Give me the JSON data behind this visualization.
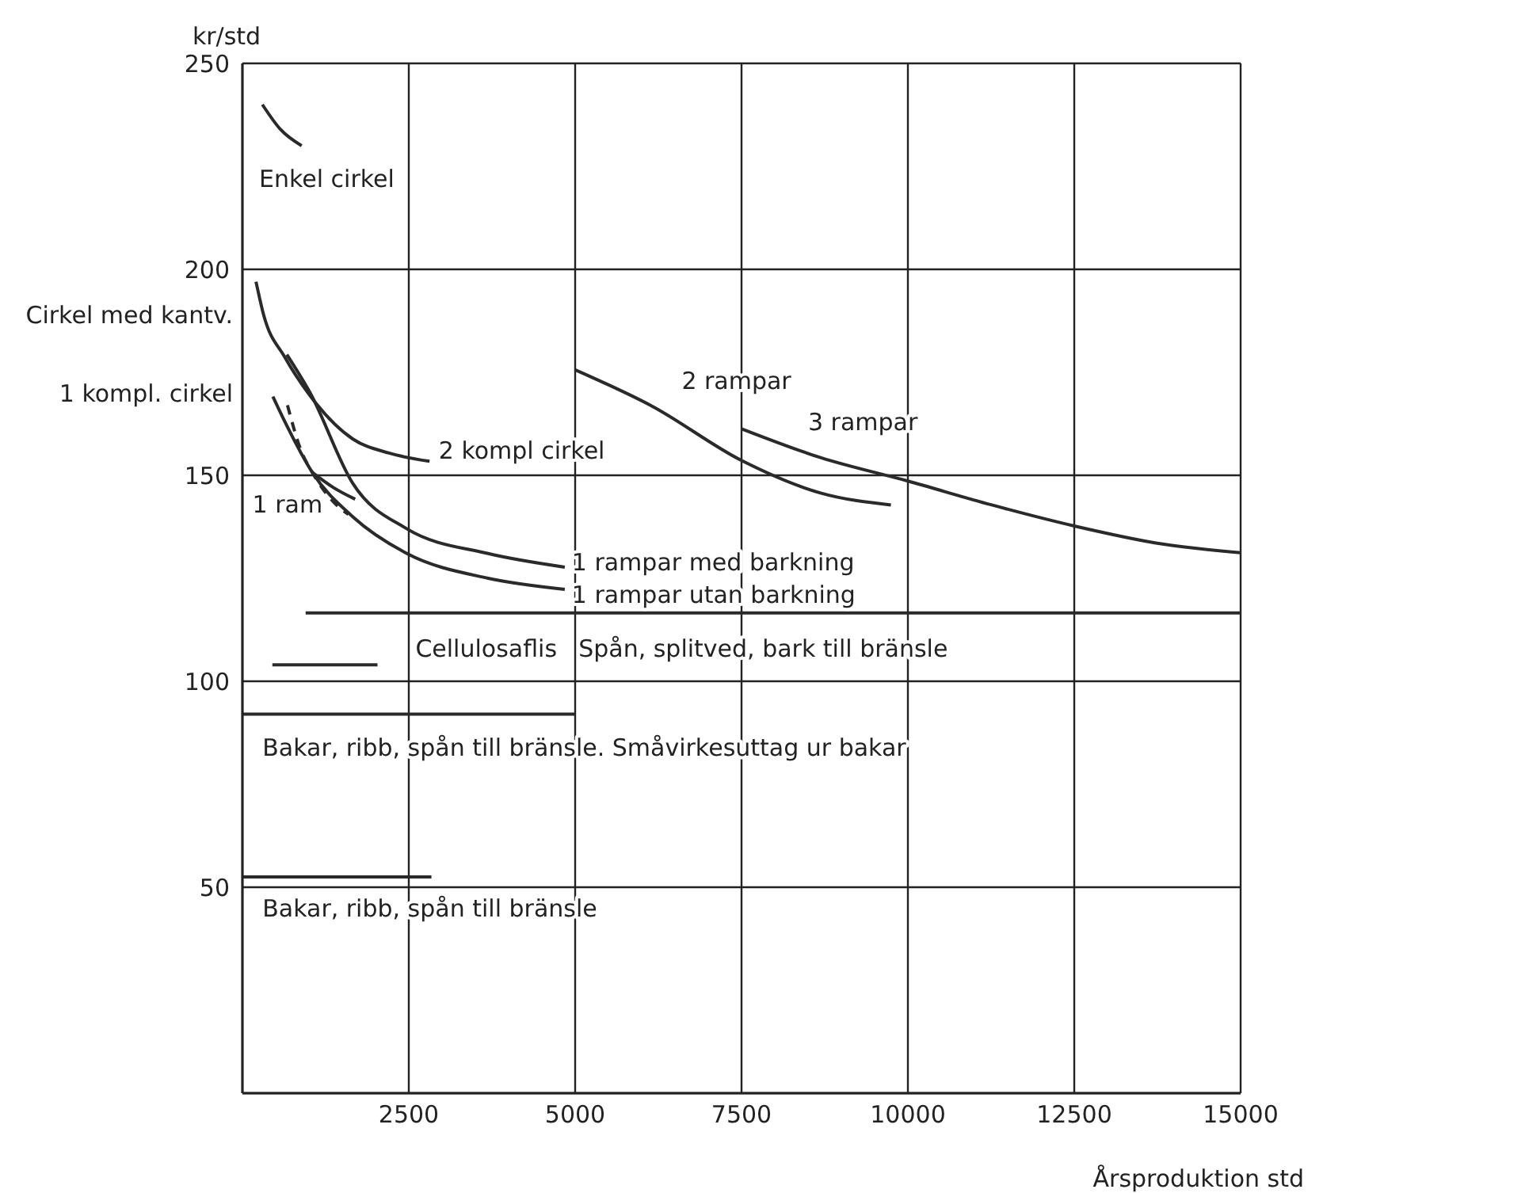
{
  "chart_data": {
    "type": "line",
    "xlabel": "Årsproduktion std",
    "ylabel": "kr/std",
    "xlim": [
      0,
      15000
    ],
    "ylim": [
      0,
      250
    ],
    "xticks": [
      2500,
      5000,
      7500,
      10000,
      12500,
      15000
    ],
    "yticks": [
      50,
      100,
      150,
      200,
      250
    ],
    "grid": true,
    "legend": false,
    "marker": "none",
    "line_style": "solid",
    "series": [
      {
        "color": "#2a2a2a",
        "x": [
          300,
          570,
          890
        ],
        "values": [
          240,
          234,
          230
        ]
      },
      {
        "color": "#2a2a2a",
        "x": [
          204,
          318,
          636,
          986,
          1660,
          2202,
          2812
        ],
        "values": [
          197,
          189,
          178.7,
          170,
          158.8,
          155.4,
          153.4
        ]
      },
      {
        "color": "#2a2a2a",
        "x": [
          668,
          1018,
          1660,
          2473,
          3693,
          4844
        ],
        "values": [
          179.3,
          170,
          148,
          137,
          131,
          127.7
        ]
      },
      {
        "color": "#2a2a2a",
        "x": [
          458,
          644,
          1050,
          1660,
          2473,
          3693,
          4844
        ],
        "values": [
          169.1,
          162.8,
          150.7,
          139.9,
          131,
          125,
          122.3
        ]
      },
      {
        "color": "#2a2a2a",
        "x": [
          1050,
          1370,
          1694
        ],
        "values": [
          150.7,
          147,
          144.2
        ]
      },
      {
        "color": "#2a2a2a",
        "line_style": "dashed",
        "x": [
          677,
          881,
          1050,
          1389,
          1592
        ],
        "values": [
          167,
          156,
          150.7,
          143.2,
          140.5
        ]
      },
      {
        "color": "#2a2a2a",
        "x": [
          5000,
          6166,
          7500,
          8688,
          9745
        ],
        "values": [
          175.6,
          166.7,
          153.6,
          145.7,
          142.8
        ]
      },
      {
        "color": "#2a2a2a",
        "x": [
          7500,
          8688,
          10000,
          11261,
          12500,
          13827,
          15000
        ],
        "values": [
          161.3,
          154.3,
          148.6,
          142.8,
          137.7,
          133.3,
          131.2
        ]
      },
      {
        "color": "#2a2a2a",
        "x": [
          950,
          15000
        ],
        "values": [
          116.6,
          116.6
        ]
      },
      {
        "color": "#2a2a2a",
        "x": [
          450,
          2030
        ],
        "values": [
          104,
          104
        ]
      },
      {
        "color": "#2a2a2a",
        "x": [
          0,
          5000
        ],
        "values": [
          92,
          92
        ]
      },
      {
        "color": "#2a2a2a",
        "x": [
          0,
          2840
        ],
        "values": [
          52.5,
          52.5
        ]
      }
    ],
    "annotations": [
      "Enkel cirkel",
      "Cirkel med kantv.",
      "1 kompl. cirkel",
      "2 kompl cirkel",
      "1 ram",
      "1 rampar med barkning",
      "1 rampar utan barkning",
      "2 rampar",
      "3 rampar",
      "Cellulosaflis",
      "Spån, splitved, bark till bränsle",
      "Bakar, ribb, spån till bränsle. Småvirkesuttag ur bakar",
      "Bakar, ribb, spån till bränsle"
    ]
  }
}
